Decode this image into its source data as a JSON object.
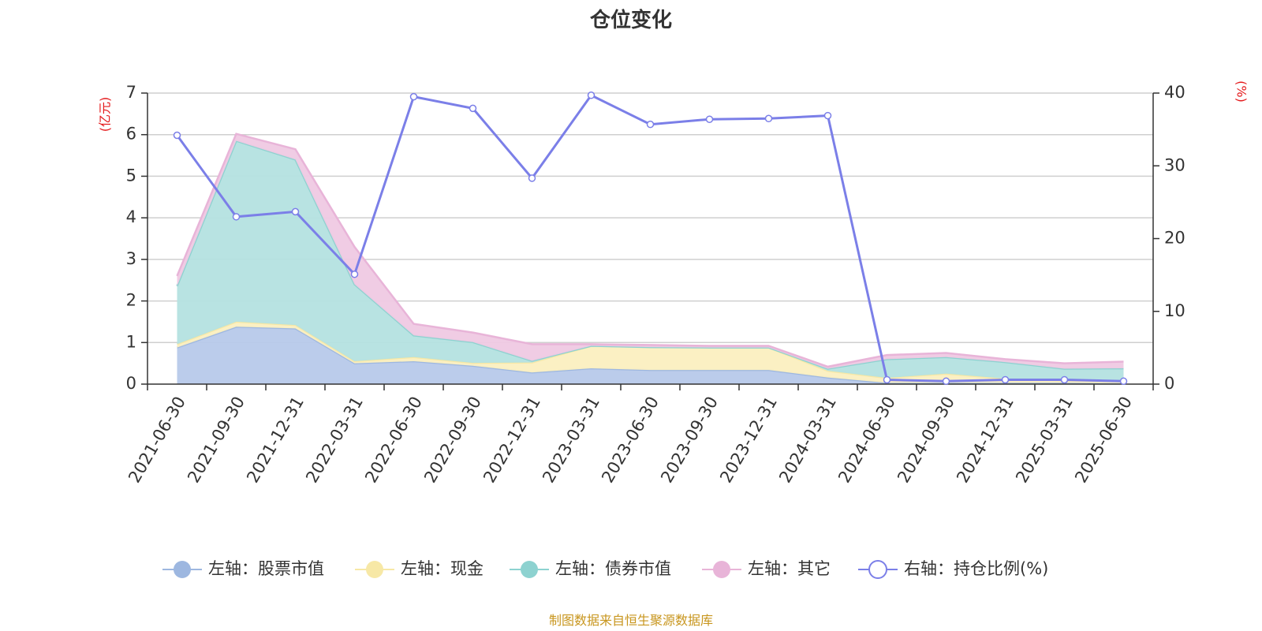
{
  "chart_data": {
    "type": "area",
    "title": "仓位变化",
    "left_unit": "(亿元)",
    "right_unit": "(%)",
    "categories": [
      "2021-06-30",
      "2021-09-30",
      "2021-12-31",
      "2022-03-31",
      "2022-06-30",
      "2022-09-30",
      "2022-12-31",
      "2023-03-31",
      "2023-06-30",
      "2023-09-30",
      "2023-12-31",
      "2024-03-31",
      "2024-06-30",
      "2024-09-30",
      "2024-12-31",
      "2025-03-31",
      "2025-06-30"
    ],
    "left_axis": {
      "min": 0,
      "max": 7,
      "ticks": [
        "0",
        "1",
        "2",
        "3",
        "4",
        "5",
        "6",
        "7"
      ]
    },
    "right_axis": {
      "min": 0,
      "max": 40,
      "ticks": [
        "0",
        "10",
        "20",
        "30",
        "40"
      ]
    },
    "series": [
      {
        "name": "左轴：股票市值",
        "axis": "left",
        "stack": true,
        "color": "#9db7e0",
        "fill": "#b7c9ea",
        "values": [
          0.88,
          1.38,
          1.34,
          0.5,
          0.55,
          0.44,
          0.28,
          0.38,
          0.34,
          0.34,
          0.34,
          0.16,
          0.03,
          0.03,
          0.03,
          0.03,
          0.02
        ]
      },
      {
        "name": "左轴：现金",
        "axis": "left",
        "stack": true,
        "color": "#f7e8a6",
        "fill": "#fbefc0",
        "values": [
          0.08,
          0.12,
          0.08,
          0.05,
          0.1,
          0.07,
          0.24,
          0.54,
          0.55,
          0.54,
          0.54,
          0.16,
          0.12,
          0.22,
          0.1,
          0.06,
          0.06
        ]
      },
      {
        "name": "左轴：债券市值",
        "axis": "left",
        "stack": true,
        "color": "#8dd2d0",
        "fill": "#b4e1e0",
        "values": [
          1.4,
          4.35,
          3.98,
          1.85,
          0.52,
          0.5,
          0.04,
          0.0,
          0.0,
          0.0,
          0.0,
          0.05,
          0.45,
          0.4,
          0.4,
          0.28,
          0.3
        ]
      },
      {
        "name": "左轴：其它",
        "axis": "left",
        "stack": true,
        "color": "#e8b4d8",
        "fill": "#efc9e3",
        "values": [
          0.24,
          0.17,
          0.25,
          0.9,
          0.28,
          0.23,
          0.4,
          0.04,
          0.05,
          0.04,
          0.04,
          0.05,
          0.1,
          0.1,
          0.07,
          0.13,
          0.16
        ]
      },
      {
        "name": "右轴：持仓比例(%)",
        "axis": "right",
        "stack": false,
        "color": "#7b7fe8",
        "values": [
          34.2,
          23.0,
          23.7,
          15.1,
          39.5,
          37.9,
          28.3,
          39.7,
          35.7,
          36.4,
          36.5,
          36.9,
          0.6,
          0.4,
          0.6,
          0.6,
          0.4
        ]
      }
    ],
    "legend_position": "bottom",
    "grid": true
  },
  "source_note": "制图数据来自恒生聚源数据库",
  "icons": {
    "legend_area": "filled-circle-icon",
    "legend_line": "hollow-circle-icon"
  }
}
